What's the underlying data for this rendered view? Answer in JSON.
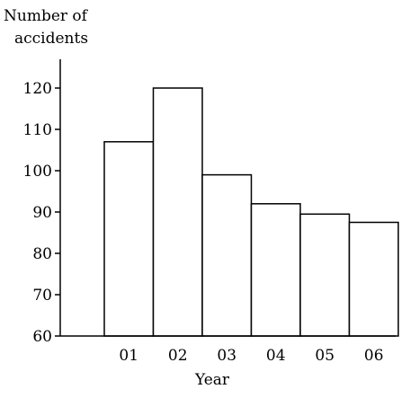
{
  "chart_data": {
    "type": "bar",
    "title": "",
    "ylabel_lines": [
      "Number of",
      "accidents"
    ],
    "xlabel": "Year",
    "categories": [
      "01",
      "02",
      "03",
      "04",
      "05",
      "06"
    ],
    "values": [
      107,
      120,
      99,
      92,
      89.5,
      87.5
    ],
    "ylim": [
      60,
      128
    ],
    "yticks": [
      60,
      70,
      80,
      90,
      100,
      110,
      120
    ],
    "grid": false,
    "legend": "none",
    "bar_fill": "#ffffff",
    "bar_stroke": "#000000"
  }
}
